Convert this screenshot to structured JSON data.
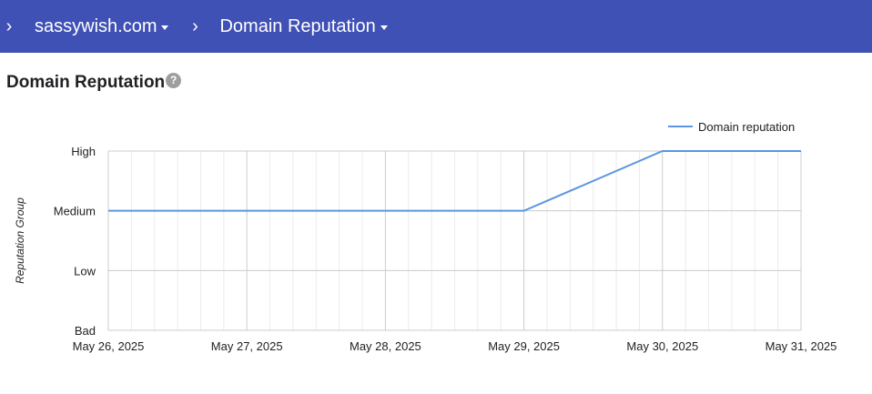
{
  "breadcrumb": {
    "items": [
      {
        "label": "sassywish.com"
      },
      {
        "label": "Domain Reputation"
      }
    ]
  },
  "page": {
    "title": "Domain Reputation",
    "help_icon": "question-mark-icon"
  },
  "chart_data": {
    "type": "line",
    "title": "",
    "xlabel": "",
    "ylabel": "Reputation Group",
    "x": [
      "May 26, 2025",
      "May 27, 2025",
      "May 28, 2025",
      "May 29, 2025",
      "May 30, 2025",
      "May 31, 2025"
    ],
    "y_categories": [
      "Bad",
      "Low",
      "Medium",
      "High"
    ],
    "series": [
      {
        "name": "Domain reputation",
        "color": "#5b95e3",
        "values": [
          "Medium",
          "Medium",
          "Medium",
          "Medium",
          "High",
          "High"
        ]
      }
    ],
    "grid": true,
    "minor_x_gridlines_per_day": 6,
    "legend_position": "top-right"
  }
}
